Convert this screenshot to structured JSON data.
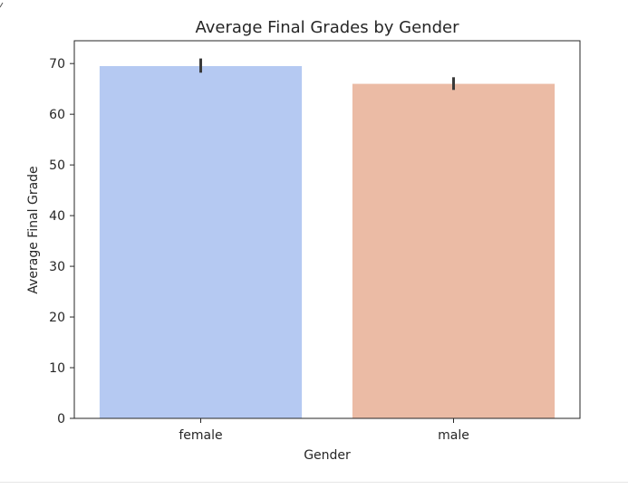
{
  "chart_data": {
    "type": "bar",
    "title": "Average Final Grades by Gender",
    "xlabel": "Gender",
    "ylabel": "Average Final Grade",
    "categories": [
      "female",
      "male"
    ],
    "values": [
      69.5,
      66.0
    ],
    "error_bars": [
      [
        68.2,
        71.0
      ],
      [
        64.8,
        67.3
      ]
    ],
    "colors": [
      "#b5c9f2",
      "#ebbba5"
    ],
    "errorbar_color": "#3a3a3a",
    "ylim": [
      0,
      74.5
    ],
    "yticks": [
      0,
      10,
      20,
      30,
      40,
      50,
      60,
      70
    ],
    "grid": false,
    "legend": "none"
  }
}
